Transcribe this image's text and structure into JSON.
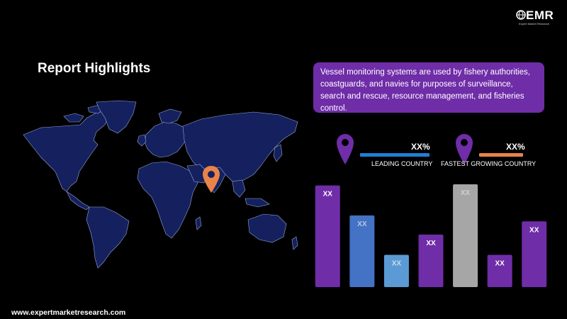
{
  "brand": {
    "logo_text": "EMR",
    "logo_tagline": "Expert Market Research",
    "website": "www.expertmarketresearch.com"
  },
  "header": {
    "title": "Report Highlights"
  },
  "description": {
    "text": "Vessel monitoring systems are used by fishery authorities, coastguards, and navies for purposes of surveillance, search and rescue, resource management, and fisheries control."
  },
  "stats": [
    {
      "value": "XX%",
      "label": "LEADING COUNTRY",
      "bar_color": "#1f7fd8",
      "pin_color": "#6f2da8"
    },
    {
      "value": "XX%",
      "label": "FASTEST GROWING COUNTRY",
      "bar_color": "#e8834a",
      "pin_color": "#6f2da8"
    }
  ],
  "map": {
    "land_color": "#14215e",
    "marker_color": "#e8834a"
  },
  "chart_data": {
    "type": "bar",
    "categories": [
      "",
      "",
      "",
      "",
      "",
      "",
      ""
    ],
    "values": [
      0.85,
      0.6,
      0.27,
      0.44,
      0.86,
      0.27,
      0.55
    ],
    "labels": [
      "XX",
      "XX",
      "XX",
      "XX",
      "XX",
      "XX",
      "XX"
    ],
    "colors": [
      "#6f2da8",
      "#4472c4",
      "#5b9bd5",
      "#6f2da8",
      "#a6a6a6",
      "#6f2da8",
      "#6f2da8"
    ],
    "label_colors": [
      "#ffffff",
      "#b9c6e8",
      "#c9dcef",
      "#ffffff",
      "#d0d0d0",
      "#ffffff",
      "#ffffff"
    ],
    "title": "",
    "xlabel": "",
    "ylabel": ""
  }
}
